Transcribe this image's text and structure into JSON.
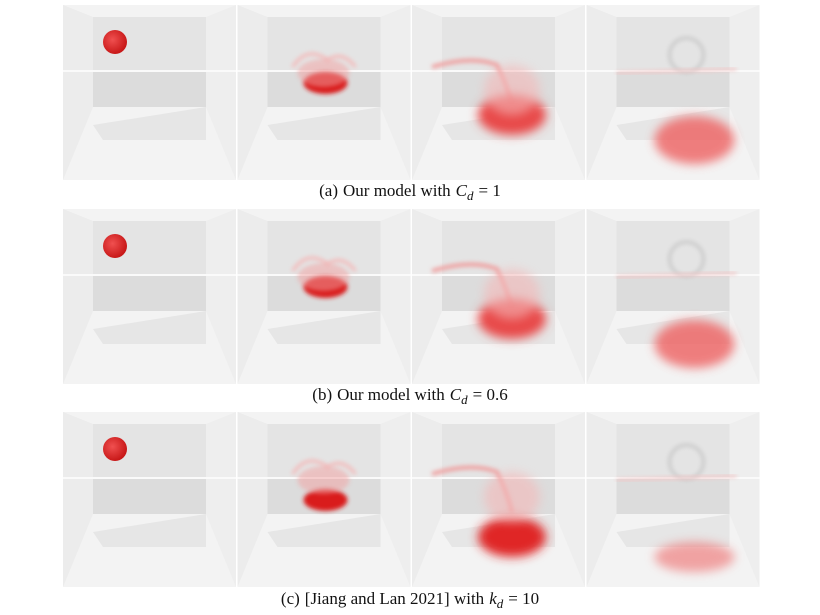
{
  "figure": {
    "panels": [
      {
        "label": "(a)",
        "text": "Our model with",
        "symbol": "C",
        "subscript": "d",
        "relation": "= 1"
      },
      {
        "label": "(b)",
        "text": "Our model with",
        "symbol": "C",
        "subscript": "d",
        "relation": "= 0.6"
      },
      {
        "label": "(c)",
        "text": "[Jiang and Lan 2021] with",
        "symbol": "k",
        "subscript": "d",
        "relation": "= 10"
      }
    ]
  }
}
